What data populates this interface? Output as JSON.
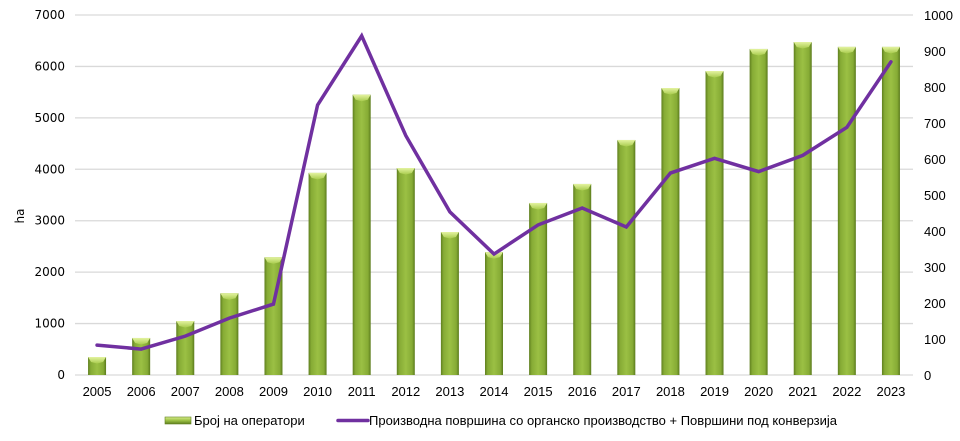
{
  "chart_data": {
    "type": "bar+line",
    "title": "",
    "categories": [
      "2005",
      "2006",
      "2007",
      "2008",
      "2009",
      "2010",
      "2011",
      "2012",
      "2013",
      "2014",
      "2015",
      "2016",
      "2017",
      "2018",
      "2019",
      "2020",
      "2021",
      "2022",
      "2023"
    ],
    "ylabel": "ha",
    "y_left": {
      "ylim": [
        0,
        7000
      ],
      "ticks": [
        "0",
        "1000",
        "2000",
        "3000",
        "4000",
        "5000",
        "6000",
        "7000"
      ]
    },
    "y_right": {
      "ylim": [
        0,
        1000
      ],
      "ticks": [
        "0",
        "100",
        "200",
        "300",
        "400",
        "500",
        "600",
        "700",
        "800",
        "900",
        "1000"
      ]
    },
    "grid": true,
    "legend_position": "bottom",
    "series": [
      {
        "name": "Број на оператори",
        "type": "bar",
        "axis": "left",
        "color": "#8db33a",
        "values": [
          350,
          720,
          1050,
          1590,
          2290,
          3930,
          5450,
          4025,
          2780,
          2390,
          3345,
          3715,
          4570,
          5580,
          5910,
          6340,
          6475,
          6380,
          6380
        ]
      },
      {
        "name": "Производна површина со органско производство + Површини под конверзија",
        "type": "line",
        "axis": "right",
        "color": "#7030a0",
        "values": [
          83,
          72,
          108,
          158,
          197,
          750,
          942,
          665,
          453,
          336,
          417,
          464,
          411,
          561,
          602,
          565,
          610,
          688,
          870
        ]
      }
    ]
  }
}
